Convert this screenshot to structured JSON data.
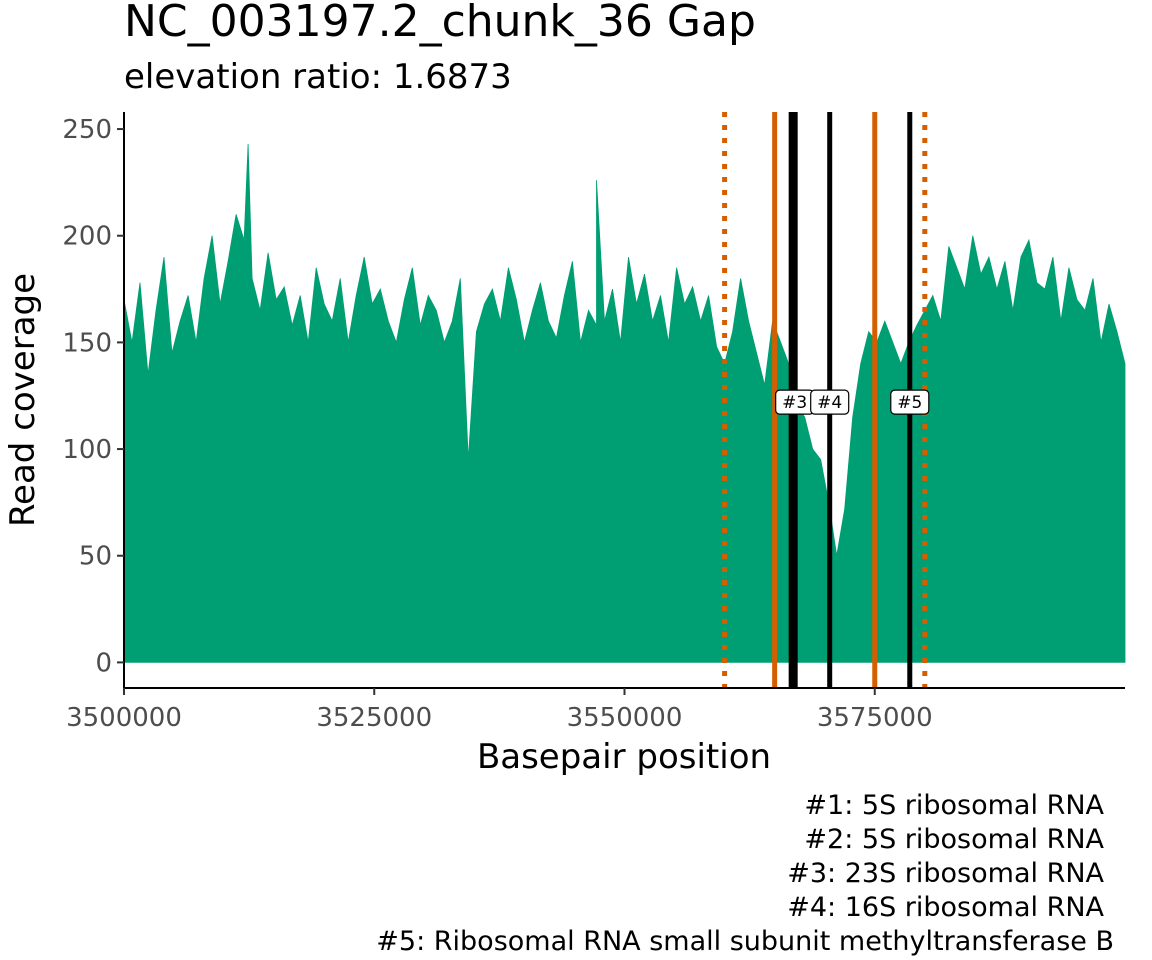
{
  "chart_data": {
    "type": "area",
    "title": "NC_003197.2_chunk_36 Gap",
    "subtitle": "elevation ratio: 1.6873",
    "xlabel": "Basepair position",
    "ylabel": "Read coverage",
    "xlim": [
      3500000,
      3600000
    ],
    "ylim": [
      -12,
      258
    ],
    "x_ticks": [
      3500000,
      3525000,
      3550000,
      3575000
    ],
    "x_tick_labels": [
      "3500000",
      "3525000",
      "3550000",
      "3575000"
    ],
    "y_ticks": [
      0,
      50,
      100,
      150,
      200,
      250
    ],
    "y_tick_labels": [
      "0",
      "50",
      "100",
      "150",
      "200",
      "250"
    ],
    "grid": false,
    "fill_color": "#009E73",
    "coverage": {
      "x": [
        3500000,
        3500800,
        3501600,
        3502400,
        3503200,
        3504000,
        3504800,
        3505600,
        3506400,
        3507200,
        3508000,
        3508800,
        3509600,
        3510400,
        3511200,
        3512000,
        3512400,
        3512800,
        3513600,
        3514400,
        3515200,
        3516000,
        3516800,
        3517600,
        3518400,
        3519200,
        3520000,
        3520800,
        3521600,
        3522400,
        3523200,
        3524000,
        3524800,
        3525600,
        3526400,
        3527200,
        3528000,
        3528800,
        3529600,
        3530400,
        3531200,
        3532000,
        3532800,
        3533600,
        3534400,
        3535200,
        3536000,
        3536800,
        3537600,
        3538400,
        3539200,
        3540000,
        3540800,
        3541600,
        3542400,
        3543200,
        3544000,
        3544800,
        3545600,
        3546400,
        3547200,
        3547200,
        3548000,
        3548800,
        3549600,
        3550400,
        3551200,
        3552000,
        3552800,
        3553600,
        3554400,
        3555200,
        3556000,
        3556800,
        3557600,
        3558400,
        3559200,
        3560000,
        3560800,
        3561600,
        3562400,
        3563200,
        3564000,
        3564800,
        3565600,
        3566400,
        3567200,
        3568000,
        3568800,
        3569600,
        3570400,
        3571200,
        3572000,
        3572800,
        3573600,
        3574400,
        3575200,
        3576000,
        3576800,
        3577600,
        3578400,
        3579200,
        3580000,
        3580800,
        3581600,
        3582400,
        3583200,
        3584000,
        3584800,
        3585600,
        3586400,
        3587200,
        3588000,
        3588800,
        3589600,
        3590400,
        3591200,
        3592000,
        3592800,
        3593600,
        3594400,
        3595200,
        3596000,
        3596800,
        3597600,
        3598400,
        3599200,
        3600000
      ],
      "y": [
        170,
        150,
        178,
        135,
        165,
        190,
        145,
        160,
        172,
        150,
        180,
        200,
        168,
        188,
        210,
        198,
        243,
        180,
        165,
        192,
        170,
        176,
        158,
        172,
        150,
        185,
        168,
        160,
        180,
        150,
        172,
        190,
        168,
        175,
        160,
        150,
        170,
        185,
        158,
        172,
        165,
        150,
        160,
        180,
        95,
        155,
        168,
        175,
        160,
        185,
        170,
        150,
        165,
        178,
        160,
        152,
        172,
        188,
        150,
        165,
        158,
        226,
        160,
        175,
        150,
        190,
        168,
        182,
        160,
        172,
        150,
        185,
        168,
        176,
        160,
        172,
        148,
        140,
        155,
        180,
        160,
        145,
        130,
        160,
        150,
        140,
        120,
        115,
        100,
        95,
        75,
        50,
        72,
        115,
        140,
        155,
        150,
        160,
        150,
        140,
        150,
        158,
        165,
        172,
        160,
        195,
        185,
        175,
        200,
        182,
        190,
        175,
        188,
        165,
        190,
        198,
        178,
        175,
        190,
        160,
        185,
        170,
        165,
        180,
        150,
        168,
        155,
        140
      ]
    },
    "vlines": [
      {
        "x": 3560000,
        "style": "dotted",
        "color": "#D55E00",
        "width": 5
      },
      {
        "x": 3565000,
        "style": "solid",
        "color": "#D55E00",
        "width": 5
      },
      {
        "x": 3566700,
        "style": "solid",
        "color": "#000000",
        "width": 6
      },
      {
        "x": 3567000,
        "style": "solid",
        "color": "#000000",
        "width": 6
      },
      {
        "x": 3570500,
        "style": "solid",
        "color": "#000000",
        "width": 5
      },
      {
        "x": 3575000,
        "style": "solid",
        "color": "#D55E00",
        "width": 5
      },
      {
        "x": 3578500,
        "style": "solid",
        "color": "#000000",
        "width": 5
      },
      {
        "x": 3580000,
        "style": "dotted",
        "color": "#D55E00",
        "width": 5
      }
    ],
    "gene_labels": [
      {
        "text": "#3",
        "x": 3567000,
        "y": 122
      },
      {
        "text": "#4",
        "x": 3570500,
        "y": 122
      },
      {
        "text": "#5",
        "x": 3578500,
        "y": 122
      }
    ],
    "caption_lines": [
      "#1: 5S ribosomal RNA",
      "#2: 5S ribosomal RNA",
      "#3: 23S ribosomal RNA",
      "#4: 16S ribosomal RNA",
      "#5: Ribosomal RNA small subunit methyltransferase B"
    ]
  }
}
